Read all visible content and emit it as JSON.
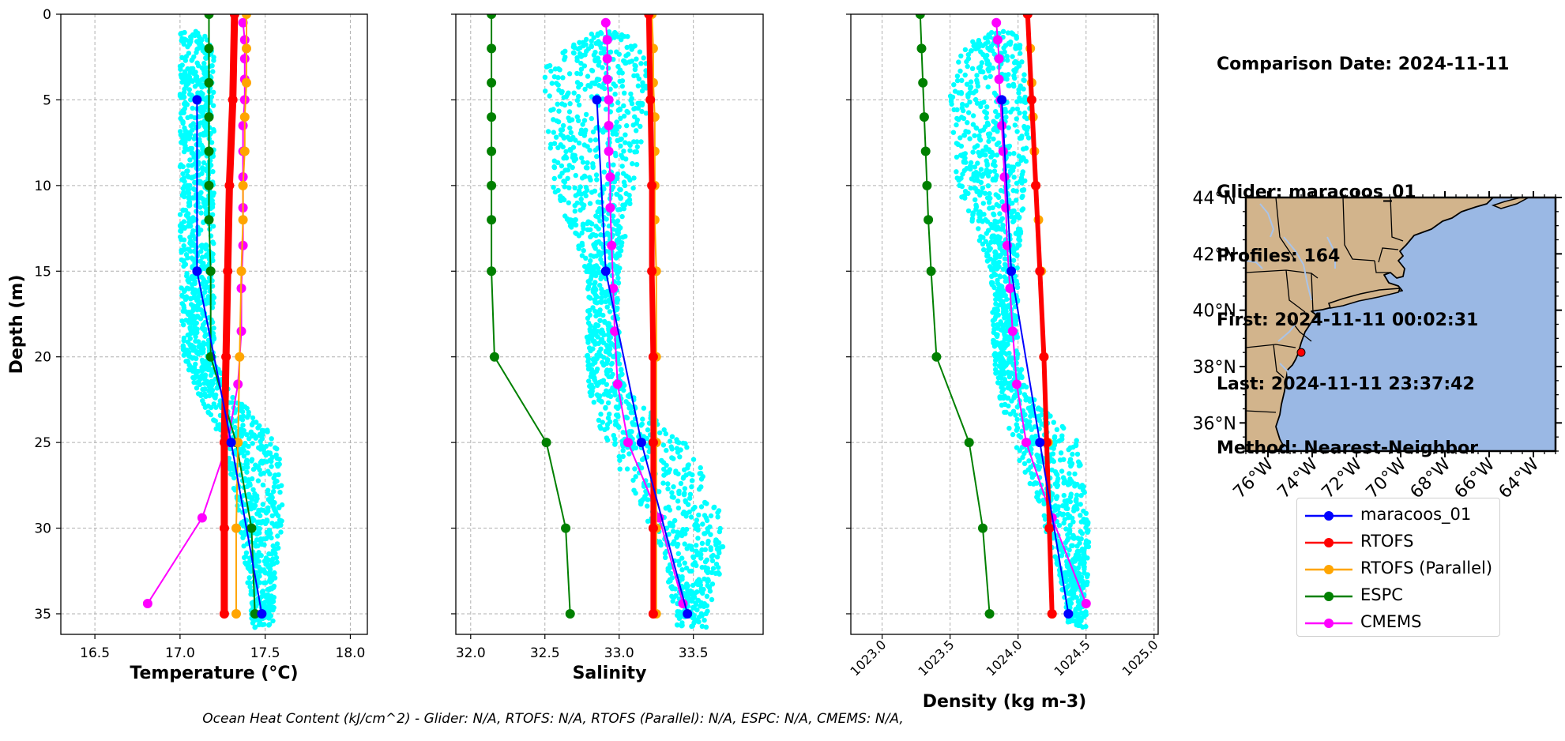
{
  "info": {
    "comparison_date": "Comparison Date: 2024-11-11",
    "glider": "Glider: maracoos_01",
    "profiles": "Profiles: 164",
    "first": "First: 2024-11-11 00:02:31",
    "last": "Last: 2024-11-11 23:37:42",
    "method": "Method: Nearest-Neighbor"
  },
  "footer": "Ocean Heat Content (kJ/cm^2) - Glider: N/A,  RTOFS: N/A,  RTOFS (Parallel): N/A,  ESPC: N/A,  CMEMS: N/A,",
  "colors": {
    "glider": "#0000ff",
    "rtofs": "#ff0000",
    "rtofs_parallel": "#ffa500",
    "espc": "#008000",
    "cmems": "#ff00ff",
    "scatter": "#00ffff",
    "land": "#d2b48c",
    "ocean": "#9ab8e4"
  },
  "legend": {
    "placement": "below map",
    "items": [
      {
        "label": "maracoos_01",
        "color": "#0000ff"
      },
      {
        "label": "RTOFS",
        "color": "#ff0000"
      },
      {
        "label": "RTOFS (Parallel)",
        "color": "#ffa500"
      },
      {
        "label": "ESPC",
        "color": "#008000"
      },
      {
        "label": "CMEMS",
        "color": "#ff00ff"
      }
    ]
  },
  "chart_data": [
    {
      "type": "line",
      "xlabel": "Temperature (°C)",
      "ylabel": "Depth (m)",
      "xlim": [
        16.3,
        18.1
      ],
      "ylim": [
        36.2,
        0
      ],
      "xticks": [
        "16.5",
        "17.0",
        "17.5",
        "18.0"
      ],
      "xtick_values": [
        16.5,
        17.0,
        17.5,
        18.0
      ],
      "yticks": [
        "0",
        "5",
        "10",
        "15",
        "20",
        "25",
        "30",
        "35"
      ],
      "grid": true,
      "scatter_band": {
        "name": "maracoos_01 profiles",
        "depth": [
          1,
          5,
          10,
          15,
          20,
          22,
          25,
          28,
          30,
          32,
          35
        ],
        "min": [
          17.0,
          17.0,
          17.0,
          17.0,
          17.02,
          17.1,
          17.25,
          17.32,
          17.35,
          17.38,
          17.42
        ],
        "max": [
          17.2,
          17.2,
          17.2,
          17.2,
          17.2,
          17.3,
          17.58,
          17.6,
          17.6,
          17.57,
          17.55
        ]
      },
      "series": [
        {
          "name": "maracoos_01",
          "color": "#0000ff",
          "width": 2,
          "depth": [
            5,
            15,
            25,
            35
          ],
          "values": [
            17.1,
            17.1,
            17.3,
            17.48
          ]
        },
        {
          "name": "RTOFS",
          "color": "#ff0000",
          "width": 9,
          "depth": [
            0,
            5,
            10,
            15,
            20,
            25,
            30,
            35
          ],
          "values": [
            17.32,
            17.31,
            17.29,
            17.28,
            17.27,
            17.26,
            17.26,
            17.26
          ]
        },
        {
          "name": "RTOFS (Parallel)",
          "color": "#ffa500",
          "width": 2,
          "depth": [
            0,
            2,
            4,
            6,
            8,
            10,
            12,
            15,
            20,
            25,
            30,
            35
          ],
          "values": [
            17.39,
            17.39,
            17.39,
            17.38,
            17.38,
            17.37,
            17.37,
            17.36,
            17.35,
            17.34,
            17.33,
            17.33
          ]
        },
        {
          "name": "ESPC",
          "color": "#008000",
          "width": 2,
          "depth": [
            0,
            2,
            4,
            6,
            8,
            10,
            12,
            15,
            20,
            25,
            30,
            35
          ],
          "values": [
            17.17,
            17.17,
            17.17,
            17.17,
            17.17,
            17.17,
            17.17,
            17.18,
            17.18,
            17.33,
            17.42,
            17.44
          ]
        },
        {
          "name": "CMEMS",
          "color": "#ff00ff",
          "width": 2,
          "depth": [
            0.5,
            1.5,
            2.6,
            3.8,
            5,
            6.5,
            8,
            9.5,
            11.3,
            13.5,
            16,
            18.5,
            21.6,
            25,
            29.4,
            34.4
          ],
          "values": [
            17.37,
            17.38,
            17.38,
            17.38,
            17.38,
            17.37,
            17.37,
            17.37,
            17.37,
            17.37,
            17.36,
            17.36,
            17.34,
            17.28,
            17.13,
            16.81
          ]
        }
      ]
    },
    {
      "type": "line",
      "xlabel": "Salinity",
      "ylabel": "",
      "xlim": [
        31.9,
        33.97
      ],
      "ylim": [
        36.2,
        0
      ],
      "xticks": [
        "32.0",
        "32.5",
        "33.0",
        "33.5"
      ],
      "xtick_values": [
        32.0,
        32.5,
        33.0,
        33.5
      ],
      "grid": true,
      "scatter_band": {
        "name": "maracoos_01 profiles",
        "depth": [
          1,
          3,
          5,
          10,
          15,
          20,
          22,
          25,
          28,
          30,
          32,
          35
        ],
        "min": [
          32.82,
          32.5,
          32.5,
          32.55,
          32.78,
          32.78,
          32.8,
          32.9,
          33.1,
          33.2,
          33.3,
          33.38
        ],
        "max": [
          33.05,
          33.2,
          33.2,
          33.1,
          33.0,
          33.0,
          33.05,
          33.45,
          33.65,
          33.7,
          33.7,
          33.6
        ]
      },
      "series": [
        {
          "name": "maracoos_01",
          "color": "#0000ff",
          "width": 2,
          "depth": [
            5,
            15,
            25,
            35
          ],
          "values": [
            32.85,
            32.91,
            33.15,
            33.46
          ]
        },
        {
          "name": "RTOFS",
          "color": "#ff0000",
          "width": 7,
          "depth": [
            0,
            5,
            10,
            15,
            20,
            25,
            30,
            35
          ],
          "values": [
            33.2,
            33.21,
            33.22,
            33.22,
            33.23,
            33.23,
            33.23,
            33.23
          ]
        },
        {
          "name": "RTOFS (Parallel)",
          "color": "#ffa500",
          "width": 2,
          "depth": [
            0,
            2,
            4,
            6,
            8,
            10,
            12,
            15,
            20,
            25,
            30,
            35
          ],
          "values": [
            33.22,
            33.23,
            33.23,
            33.24,
            33.24,
            33.24,
            33.24,
            33.25,
            33.25,
            33.25,
            33.25,
            33.25
          ]
        },
        {
          "name": "ESPC",
          "color": "#008000",
          "width": 2,
          "depth": [
            0,
            2,
            4,
            6,
            8,
            10,
            12,
            15,
            20,
            25,
            30,
            35
          ],
          "values": [
            32.14,
            32.14,
            32.14,
            32.14,
            32.14,
            32.14,
            32.14,
            32.14,
            32.16,
            32.51,
            32.64,
            32.67
          ]
        },
        {
          "name": "CMEMS",
          "color": "#ff00ff",
          "width": 2,
          "depth": [
            0.5,
            1.5,
            2.6,
            3.8,
            5,
            6.5,
            8,
            9.5,
            11.3,
            13.5,
            16,
            18.5,
            21.6,
            25,
            29.4,
            34.4
          ],
          "values": [
            32.91,
            32.92,
            32.92,
            32.92,
            32.93,
            32.93,
            32.93,
            32.94,
            32.94,
            32.95,
            32.96,
            32.97,
            32.99,
            33.06,
            33.27,
            33.43
          ]
        }
      ]
    },
    {
      "type": "line",
      "xlabel": "Density (kg m-3)",
      "ylabel": "",
      "xlim": [
        1022.77,
        1025.03
      ],
      "ylim": [
        36.2,
        0
      ],
      "xticks": [
        "1023.0",
        "1023.5",
        "1024.0",
        "1024.5",
        "1025.0"
      ],
      "xtick_values": [
        1023.0,
        1023.5,
        1024.0,
        1024.5,
        1025.0
      ],
      "grid": true,
      "scatter_band": {
        "name": "maracoos_01 profiles",
        "depth": [
          1,
          3,
          5,
          10,
          15,
          20,
          22,
          25,
          28,
          30,
          32,
          35
        ],
        "min": [
          1023.73,
          1023.5,
          1023.5,
          1023.55,
          1023.8,
          1023.82,
          1023.85,
          1023.95,
          1024.12,
          1024.2,
          1024.28,
          1024.36
        ],
        "max": [
          1024.0,
          1024.05,
          1024.1,
          1024.05,
          1024.0,
          1024.0,
          1024.07,
          1024.45,
          1024.5,
          1024.52,
          1024.52,
          1024.5
        ]
      },
      "series": [
        {
          "name": "maracoos_01",
          "color": "#0000ff",
          "width": 2,
          "depth": [
            5,
            15,
            25,
            35
          ],
          "values": [
            1023.88,
            1023.95,
            1024.16,
            1024.37
          ]
        },
        {
          "name": "RTOFS",
          "color": "#ff0000",
          "width": 6,
          "depth": [
            0,
            5,
            10,
            15,
            20,
            25,
            30,
            35
          ],
          "values": [
            1024.07,
            1024.1,
            1024.13,
            1024.16,
            1024.19,
            1024.21,
            1024.23,
            1024.25
          ]
        },
        {
          "name": "RTOFS (Parallel)",
          "color": "#ffa500",
          "width": 2,
          "depth": [
            0,
            2,
            4,
            6,
            8,
            10,
            12,
            15,
            20,
            25,
            30,
            35
          ],
          "values": [
            1024.07,
            1024.09,
            1024.1,
            1024.11,
            1024.12,
            1024.13,
            1024.15,
            1024.17,
            1024.19,
            1024.22,
            1024.23,
            1024.25
          ]
        },
        {
          "name": "ESPC",
          "color": "#008000",
          "width": 2,
          "depth": [
            0,
            2,
            4,
            6,
            8,
            10,
            12,
            15,
            20,
            25,
            30,
            35
          ],
          "values": [
            1023.28,
            1023.29,
            1023.3,
            1023.31,
            1023.32,
            1023.33,
            1023.34,
            1023.36,
            1023.4,
            1023.64,
            1023.74,
            1023.79
          ]
        },
        {
          "name": "CMEMS",
          "color": "#ff00ff",
          "width": 2,
          "depth": [
            0.5,
            1.5,
            2.6,
            3.8,
            5,
            6.5,
            8,
            9.5,
            11.3,
            13.5,
            16,
            18.5,
            21.6,
            25,
            29.4,
            34.4
          ],
          "values": [
            1023.84,
            1023.85,
            1023.86,
            1023.86,
            1023.87,
            1023.88,
            1023.89,
            1023.9,
            1023.91,
            1023.92,
            1023.94,
            1023.96,
            1023.99,
            1024.06,
            1024.25,
            1024.5
          ]
        }
      ]
    }
  ],
  "map": {
    "lat_ticks": [
      "44°N",
      "42°N",
      "40°N",
      "38°N",
      "36°N"
    ],
    "lat_values": [
      44,
      42,
      40,
      38,
      36
    ],
    "lon_ticks": [
      "76°W",
      "74°W",
      "72°W",
      "70°W",
      "68°W",
      "66°W",
      "64°W"
    ],
    "lon_values": [
      -76,
      -74,
      -72,
      -70,
      -68,
      -66,
      -64
    ],
    "lon_range": [
      -77,
      -63
    ],
    "lat_range": [
      35,
      44
    ],
    "glider_position": {
      "lon": -74.5,
      "lat": 38.5
    }
  }
}
